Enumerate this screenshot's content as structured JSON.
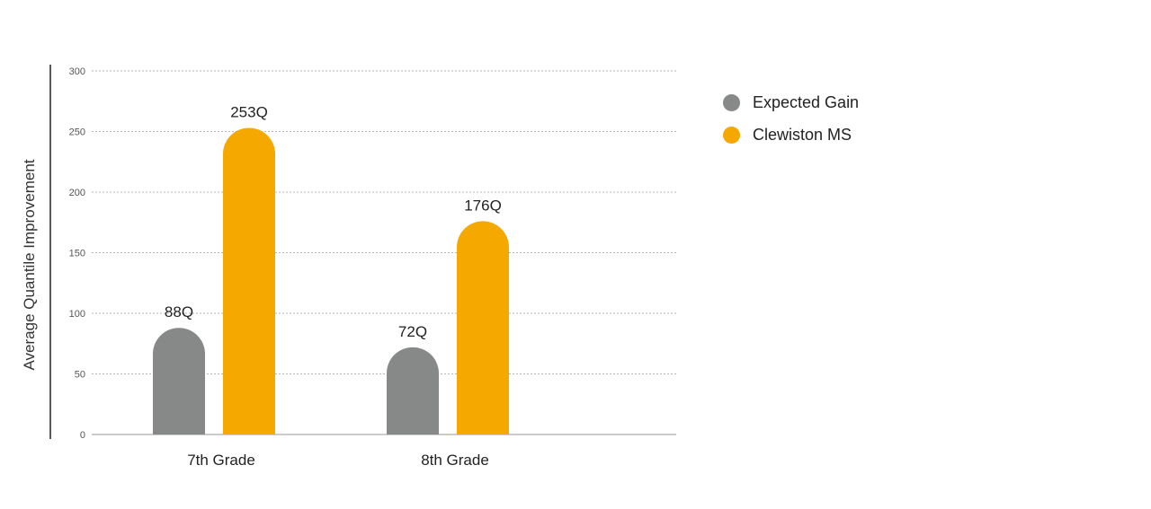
{
  "chart_data": {
    "type": "bar",
    "title": "",
    "xlabel": "",
    "ylabel": "Average Quantile Improvement",
    "ylim": [
      0,
      300
    ],
    "yticks": [
      0,
      50,
      100,
      150,
      200,
      250,
      300
    ],
    "grid": true,
    "legend_position": "top-right",
    "categories": [
      "7th Grade",
      "8th Grade"
    ],
    "series": [
      {
        "name": "Expected Gain",
        "values": [
          88,
          72
        ],
        "labels": [
          "88Q",
          "72Q"
        ],
        "color": "#878989"
      },
      {
        "name": "Clewiston MS",
        "values": [
          253,
          176
        ],
        "labels": [
          "253Q",
          "176Q"
        ],
        "color": "#f5a800"
      }
    ]
  }
}
